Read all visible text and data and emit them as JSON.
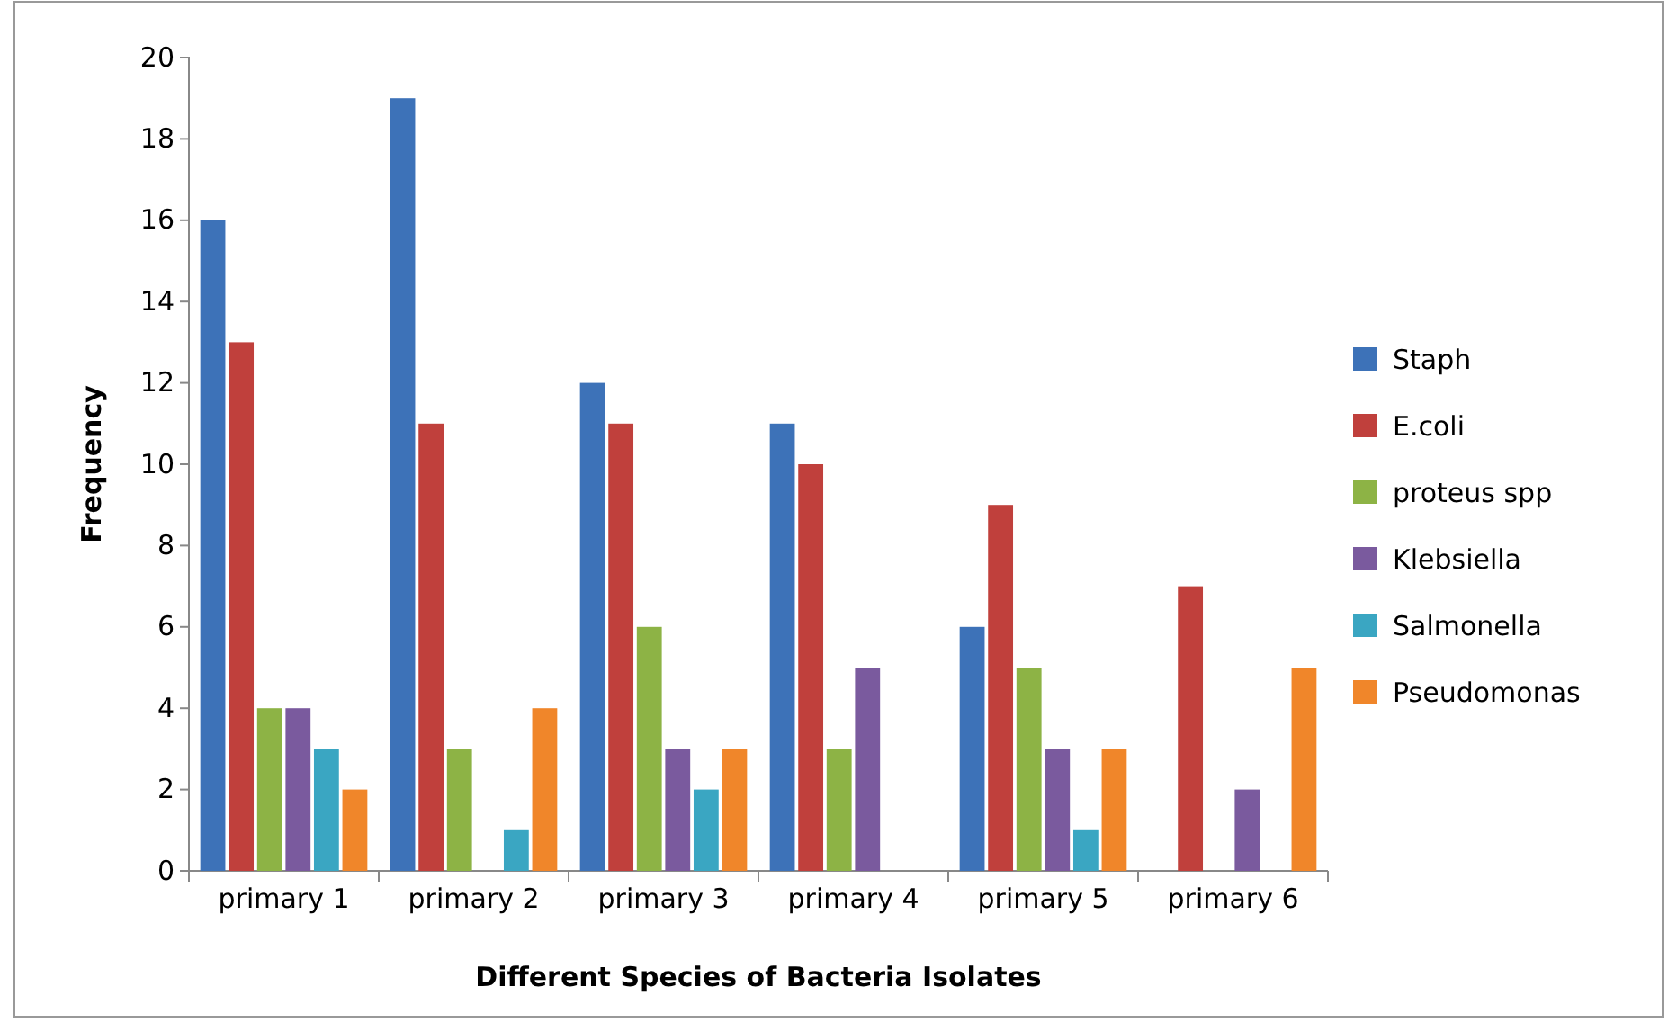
{
  "chart_data": {
    "type": "bar",
    "xlabel": "Different Species of Bacteria Isolates",
    "ylabel": "Frequency",
    "categories": [
      "primary 1",
      "primary 2",
      "primary 3",
      "primary 4",
      "primary 5",
      "primary 6"
    ],
    "series": [
      {
        "name": "Staph",
        "color": "#3d72b8",
        "values": [
          16,
          19,
          12,
          11,
          6,
          null
        ]
      },
      {
        "name": "E.coli",
        "color": "#c0403c",
        "values": [
          13,
          11,
          11,
          10,
          9,
          7
        ]
      },
      {
        "name": "proteus spp",
        "color": "#8db345",
        "values": [
          4,
          3,
          6,
          3,
          5,
          null
        ]
      },
      {
        "name": "Klebsiella",
        "color": "#7a5a9e",
        "values": [
          4,
          null,
          3,
          5,
          3,
          2
        ]
      },
      {
        "name": "Salmonella",
        "color": "#3aa6c2",
        "values": [
          3,
          1,
          2,
          null,
          1,
          null
        ]
      },
      {
        "name": "Pseudomonas",
        "color": "#f0862a",
        "values": [
          2,
          4,
          3,
          null,
          3,
          5
        ]
      }
    ],
    "ylim": [
      0,
      20
    ],
    "yticks": [
      0,
      2,
      4,
      6,
      8,
      10,
      12,
      14,
      16,
      18,
      20
    ],
    "grid": false,
    "legend": "right"
  }
}
